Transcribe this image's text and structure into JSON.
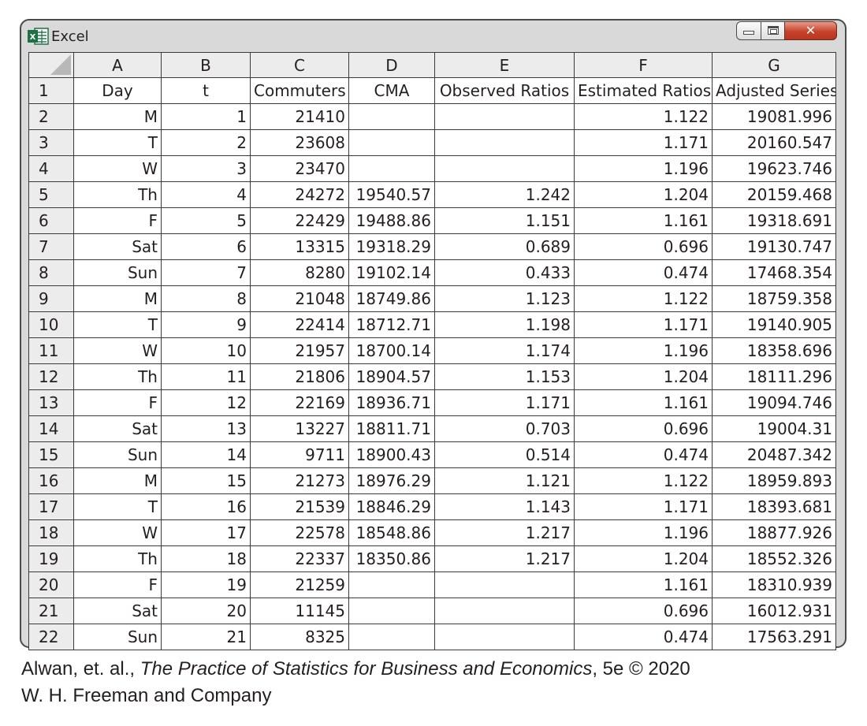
{
  "window": {
    "title": "Excel",
    "buttons": {
      "minimize": "minimize",
      "maximize": "maximize",
      "close": "close"
    }
  },
  "sheet": {
    "columns": [
      "A",
      "B",
      "C",
      "D",
      "E",
      "F",
      "G"
    ],
    "header_row": {
      "row_number": "1",
      "cells": [
        "Day",
        "t",
        "Commuters",
        "CMA",
        "Observed Ratios",
        "Estimated Ratios",
        "Adjusted Series"
      ]
    },
    "rows": [
      {
        "n": "2",
        "day": "M",
        "t": "1",
        "commuters": "21410",
        "cma": "",
        "obs": "",
        "est": "1.122",
        "adj": "19081.996"
      },
      {
        "n": "3",
        "day": "T",
        "t": "2",
        "commuters": "23608",
        "cma": "",
        "obs": "",
        "est": "1.171",
        "adj": "20160.547"
      },
      {
        "n": "4",
        "day": "W",
        "t": "3",
        "commuters": "23470",
        "cma": "",
        "obs": "",
        "est": "1.196",
        "adj": "19623.746"
      },
      {
        "n": "5",
        "day": "Th",
        "t": "4",
        "commuters": "24272",
        "cma": "19540.57",
        "obs": "1.242",
        "est": "1.204",
        "adj": "20159.468"
      },
      {
        "n": "6",
        "day": "F",
        "t": "5",
        "commuters": "22429",
        "cma": "19488.86",
        "obs": "1.151",
        "est": "1.161",
        "adj": "19318.691"
      },
      {
        "n": "7",
        "day": "Sat",
        "t": "6",
        "commuters": "13315",
        "cma": "19318.29",
        "obs": "0.689",
        "est": "0.696",
        "adj": "19130.747"
      },
      {
        "n": "8",
        "day": "Sun",
        "t": "7",
        "commuters": "8280",
        "cma": "19102.14",
        "obs": "0.433",
        "est": "0.474",
        "adj": "17468.354"
      },
      {
        "n": "9",
        "day": "M",
        "t": "8",
        "commuters": "21048",
        "cma": "18749.86",
        "obs": "1.123",
        "est": "1.122",
        "adj": "18759.358"
      },
      {
        "n": "10",
        "day": "T",
        "t": "9",
        "commuters": "22414",
        "cma": "18712.71",
        "obs": "1.198",
        "est": "1.171",
        "adj": "19140.905"
      },
      {
        "n": "11",
        "day": "W",
        "t": "10",
        "commuters": "21957",
        "cma": "18700.14",
        "obs": "1.174",
        "est": "1.196",
        "adj": "18358.696"
      },
      {
        "n": "12",
        "day": "Th",
        "t": "11",
        "commuters": "21806",
        "cma": "18904.57",
        "obs": "1.153",
        "est": "1.204",
        "adj": "18111.296"
      },
      {
        "n": "13",
        "day": "F",
        "t": "12",
        "commuters": "22169",
        "cma": "18936.71",
        "obs": "1.171",
        "est": "1.161",
        "adj": "19094.746"
      },
      {
        "n": "14",
        "day": "Sat",
        "t": "13",
        "commuters": "13227",
        "cma": "18811.71",
        "obs": "0.703",
        "est": "0.696",
        "adj": "19004.31"
      },
      {
        "n": "15",
        "day": "Sun",
        "t": "14",
        "commuters": "9711",
        "cma": "18900.43",
        "obs": "0.514",
        "est": "0.474",
        "adj": "20487.342"
      },
      {
        "n": "16",
        "day": "M",
        "t": "15",
        "commuters": "21273",
        "cma": "18976.29",
        "obs": "1.121",
        "est": "1.122",
        "adj": "18959.893"
      },
      {
        "n": "17",
        "day": "T",
        "t": "16",
        "commuters": "21539",
        "cma": "18846.29",
        "obs": "1.143",
        "est": "1.171",
        "adj": "18393.681"
      },
      {
        "n": "18",
        "day": "W",
        "t": "17",
        "commuters": "22578",
        "cma": "18548.86",
        "obs": "1.217",
        "est": "1.196",
        "adj": "18877.926"
      },
      {
        "n": "19",
        "day": "Th",
        "t": "18",
        "commuters": "22337",
        "cma": "18350.86",
        "obs": "1.217",
        "est": "1.204",
        "adj": "18552.326"
      },
      {
        "n": "20",
        "day": "F",
        "t": "19",
        "commuters": "21259",
        "cma": "",
        "obs": "",
        "est": "1.161",
        "adj": "18310.939"
      },
      {
        "n": "21",
        "day": "Sat",
        "t": "20",
        "commuters": "11145",
        "cma": "",
        "obs": "",
        "est": "0.696",
        "adj": "16012.931"
      },
      {
        "n": "22",
        "day": "Sun",
        "t": "21",
        "commuters": "8325",
        "cma": "",
        "obs": "",
        "est": "0.474",
        "adj": "17563.291"
      }
    ]
  },
  "credit": {
    "authors": "Alwan, et. al., ",
    "book_title": "The Practice of Statistics for Business and Economics",
    "edition": ", 5e © 2020",
    "publisher": "W. H. Freeman and Company"
  },
  "colors": {
    "excel_green": "#1e7145",
    "close_red": "#c7422a",
    "window_frame": "#d9d9d9",
    "header_fill": "#ececec"
  },
  "icons": {
    "app": "excel-icon"
  }
}
